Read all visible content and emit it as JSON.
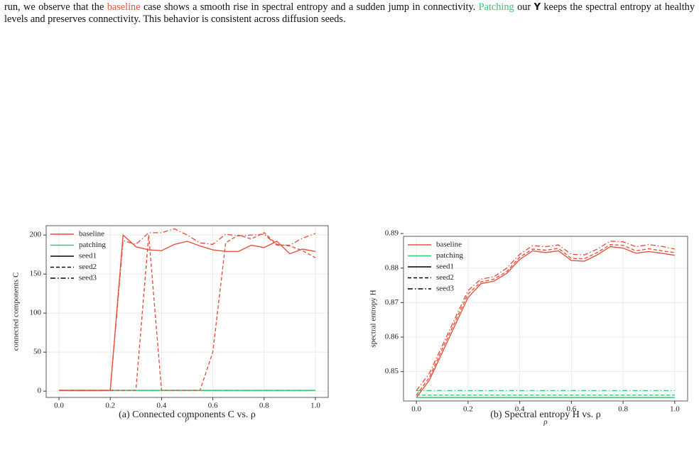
{
  "paragraph": {
    "segments": [
      {
        "text": "run, we observe that the "
      },
      {
        "text": "baseline",
        "color": "#e8513f"
      },
      {
        "text": " case shows a smooth rise in spectral entropy and a sudden jump in connectivity. "
      },
      {
        "text": "Patching",
        "color": "#2ecc71"
      },
      {
        "text": " our "
      },
      {
        "text": "Y",
        "bold": true
      },
      {
        "text": " keeps the spectral entropy at healthy levels and preserves connectivity. This behavior is consistent across diffusion seeds."
      }
    ]
  },
  "chart_data": [
    {
      "type": "line",
      "caption": "(a) Connected components C vs. ρ",
      "xlabel": "ρ",
      "ylabel": "connected components C",
      "grid": true,
      "legend_position": "upper-left",
      "xlim": [
        -0.05,
        1.05
      ],
      "ylim": [
        -8,
        212
      ],
      "xticks": [
        {
          "value": 0,
          "label": "0.0"
        },
        0.2,
        0.4,
        0.6,
        0.8,
        {
          "value": 1,
          "label": "1.0"
        }
      ],
      "yticks": [
        0,
        50,
        100,
        150,
        200
      ],
      "x": [
        0,
        0.05,
        0.1,
        0.15,
        0.2,
        0.25,
        0.3,
        0.35,
        0.4,
        0.45,
        0.5,
        0.55,
        0.6,
        0.65,
        0.7,
        0.75,
        0.8,
        0.85,
        0.9,
        0.95,
        1
      ],
      "legend": [
        {
          "label": "baseline",
          "color": "#e8513f"
        },
        {
          "label": "patching",
          "color": "#2ecc71"
        },
        {
          "label": "seed1",
          "dash": "solid"
        },
        {
          "label": "seed2",
          "dash": "dashed"
        },
        {
          "label": "seed3",
          "dash": "dashdot"
        }
      ],
      "series": [
        {
          "color": "#2ecc71",
          "dash": "solid",
          "values": [
            1,
            1,
            1,
            1,
            1,
            1,
            1,
            1,
            1,
            1,
            1,
            1,
            1,
            1,
            1,
            1,
            1,
            1,
            1,
            1,
            1
          ]
        },
        {
          "color": "#2ecc71",
          "dash": "dashed",
          "values": [
            1,
            1,
            1,
            1,
            1,
            1,
            1,
            1,
            1,
            1,
            1,
            1,
            1,
            1,
            1,
            1,
            1,
            1,
            1,
            1,
            1
          ]
        },
        {
          "color": "#2ecc71",
          "dash": "dashdot",
          "values": [
            1,
            1,
            1,
            1,
            1,
            1,
            1,
            1,
            1,
            1,
            1,
            1,
            1,
            1,
            1,
            1,
            1,
            1,
            1,
            1,
            1
          ]
        },
        {
          "color": "#e8513f",
          "dash": "solid",
          "values": [
            1,
            1,
            1,
            1,
            1,
            200,
            185,
            181,
            180,
            188,
            192,
            186,
            181,
            179,
            179,
            187,
            184,
            192,
            176,
            182,
            179
          ]
        },
        {
          "color": "#e8513f",
          "dash": "dashed",
          "values": [
            1,
            1,
            1,
            1,
            1,
            1,
            1,
            200,
            1,
            1,
            1,
            1,
            50,
            190,
            200,
            195,
            203,
            188,
            186,
            180,
            171
          ]
        },
        {
          "color": "#e8513f",
          "dash": "dashdot",
          "values": [
            1,
            1,
            1,
            1,
            1,
            193,
            188,
            203,
            203,
            208,
            200,
            190,
            188,
            201,
            199,
            200,
            201,
            187,
            187,
            196,
            202
          ]
        }
      ]
    },
    {
      "type": "line",
      "caption": "(b) Spectral entropy H vs. ρ",
      "xlabel": "ρ",
      "ylabel": "spectral entropy H",
      "grid": true,
      "legend_position": "upper-left",
      "xlim": [
        -0.05,
        1.05
      ],
      "ylim": [
        0.8415,
        0.8892
      ],
      "xticks": [
        {
          "value": 0,
          "label": "0.0"
        },
        0.2,
        0.4,
        0.6,
        0.8,
        {
          "value": 1,
          "label": "1.0"
        }
      ],
      "yticks": [
        0.85,
        0.86,
        0.87,
        0.88,
        0.89
      ],
      "x": [
        0,
        0.05,
        0.1,
        0.15,
        0.2,
        0.25,
        0.3,
        0.35,
        0.4,
        0.45,
        0.5,
        0.55,
        0.6,
        0.65,
        0.7,
        0.75,
        0.8,
        0.85,
        0.9,
        0.95,
        1
      ],
      "legend": [
        {
          "label": "baseline",
          "color": "#e8513f"
        },
        {
          "label": "patching",
          "color": "#2ecc71"
        },
        {
          "label": "seed1",
          "dash": "solid"
        },
        {
          "label": "seed2",
          "dash": "dashed"
        },
        {
          "label": "seed3",
          "dash": "dashdot"
        }
      ],
      "series": [
        {
          "color": "#2ecc71",
          "dash": "solid",
          "values": [
            0.8425,
            0.8425,
            0.8425,
            0.8425,
            0.8425,
            0.8425,
            0.8425,
            0.8425,
            0.8425,
            0.8425,
            0.8425,
            0.8425,
            0.8425,
            0.8425,
            0.8425,
            0.8425,
            0.8425,
            0.8425,
            0.8425,
            0.8425,
            0.8425
          ]
        },
        {
          "color": "#2ecc71",
          "dash": "dashed",
          "values": [
            0.8432,
            0.8432,
            0.8432,
            0.8432,
            0.8432,
            0.8432,
            0.8432,
            0.8432,
            0.8432,
            0.8432,
            0.8432,
            0.8432,
            0.8432,
            0.8432,
            0.8432,
            0.8432,
            0.8432,
            0.8432,
            0.8432,
            0.8432,
            0.8432
          ]
        },
        {
          "color": "#2ecc71",
          "dash": "dashdot",
          "values": [
            0.8445,
            0.8445,
            0.8445,
            0.8445,
            0.8445,
            0.8445,
            0.8445,
            0.8445,
            0.8445,
            0.8445,
            0.8445,
            0.8445,
            0.8445,
            0.8445,
            0.8445,
            0.8445,
            0.8445,
            0.8445,
            0.8445,
            0.8445,
            0.8445
          ]
        },
        {
          "color": "#e8513f",
          "dash": "solid",
          "values": [
            0.8425,
            0.8475,
            0.8555,
            0.8635,
            0.8715,
            0.8755,
            0.8762,
            0.8785,
            0.8825,
            0.885,
            0.8845,
            0.885,
            0.8822,
            0.882,
            0.8838,
            0.8862,
            0.8858,
            0.8843,
            0.8848,
            0.8843,
            0.8837
          ]
        },
        {
          "color": "#e8513f",
          "dash": "dashed",
          "values": [
            0.8432,
            0.8483,
            0.8565,
            0.8645,
            0.8725,
            0.876,
            0.8768,
            0.879,
            0.8832,
            0.8855,
            0.8852,
            0.8857,
            0.8828,
            0.8827,
            0.8845,
            0.8868,
            0.8866,
            0.885,
            0.8856,
            0.885,
            0.8845
          ]
        },
        {
          "color": "#e8513f",
          "dash": "dashdot",
          "values": [
            0.8445,
            0.8495,
            0.8575,
            0.8655,
            0.8735,
            0.8768,
            0.8775,
            0.88,
            0.884,
            0.8865,
            0.8862,
            0.8867,
            0.884,
            0.8838,
            0.8855,
            0.8878,
            0.8876,
            0.8862,
            0.8868,
            0.8863,
            0.8855
          ]
        }
      ]
    }
  ]
}
